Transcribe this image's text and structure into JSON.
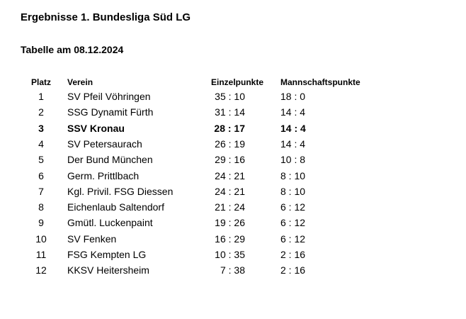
{
  "title": "Ergebnisse 1. Bundesliga Süd LG",
  "subtitle": "Tabelle am 08.12.2024",
  "headers": {
    "platz": "Platz",
    "verein": "Verein",
    "einzelpunkte": "Einzelpunkte",
    "mannschaftspunkte": "Mannschaftspunkte"
  },
  "rows": [
    {
      "platz": "1",
      "verein": "SV Pfeil Vöhringen",
      "einzel": "35 : 10",
      "mann": "18 : 0",
      "highlight": false
    },
    {
      "platz": "2",
      "verein": "SSG Dynamit Fürth",
      "einzel": "31 : 14",
      "mann": "14 : 4",
      "highlight": false
    },
    {
      "platz": "3",
      "verein": "SSV Kronau",
      "einzel": "28 : 17",
      "mann": "14 : 4",
      "highlight": true
    },
    {
      "platz": "4",
      "verein": "SV Petersaurach",
      "einzel": "26 : 19",
      "mann": "14 : 4",
      "highlight": false
    },
    {
      "platz": "5",
      "verein": "Der Bund München",
      "einzel": "29 : 16",
      "mann": "10 : 8",
      "highlight": false
    },
    {
      "platz": "6",
      "verein": "Germ. Prittlbach",
      "einzel": "24 : 21",
      "mann": "8 : 10",
      "highlight": false
    },
    {
      "platz": "7",
      "verein": "Kgl. Privil. FSG Diessen",
      "einzel": "24 : 21",
      "mann": "8 : 10",
      "highlight": false
    },
    {
      "platz": "8",
      "verein": "Eichenlaub Saltendorf",
      "einzel": "21 : 24",
      "mann": "6 : 12",
      "highlight": false
    },
    {
      "platz": "9",
      "verein": "Gmütl. Luckenpaint",
      "einzel": "19 : 26",
      "mann": "6 : 12",
      "highlight": false
    },
    {
      "platz": "10",
      "verein": "SV Fenken",
      "einzel": "16 : 29",
      "mann": "6 : 12",
      "highlight": false
    },
    {
      "platz": "11",
      "verein": "FSG Kempten LG",
      "einzel": "10 : 35",
      "mann": "2 : 16",
      "highlight": false
    },
    {
      "platz": "12",
      "verein": "KKSV Heitersheim",
      "einzel": "7 : 38",
      "mann": "2 : 16",
      "highlight": false
    }
  ]
}
